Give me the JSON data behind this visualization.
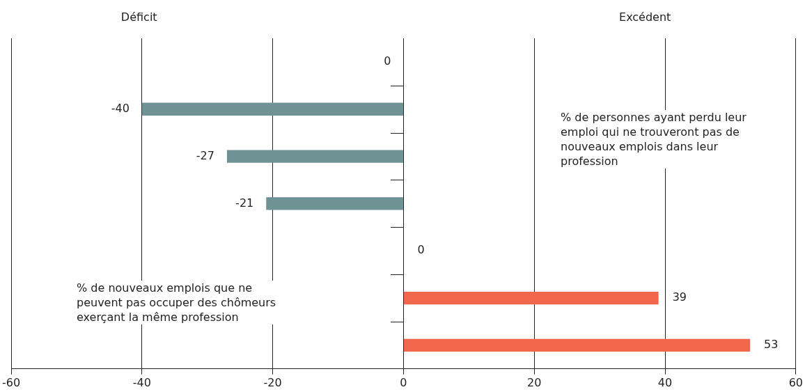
{
  "chart_data": {
    "type": "bar",
    "orientation": "horizontal",
    "categories": [
      null,
      null,
      null,
      null,
      null,
      null,
      null
    ],
    "values": [
      0,
      -40,
      -27,
      -21,
      0,
      39,
      53
    ],
    "colors": [
      "#6f9295",
      "#6f9295",
      "#6f9295",
      "#6f9295",
      "#f0674b",
      "#f0674b",
      "#f0674b"
    ],
    "data_labels": true,
    "xlim": [
      -60,
      60
    ],
    "xticks": [
      -60,
      -40,
      -20,
      0,
      20,
      40,
      60
    ],
    "grid": "x",
    "legend": false,
    "annotations": [
      "Déficit",
      "Excédent",
      "% de personnes ayant perdu leur emploi qui ne trouveront pas de nouveaux emplois dans leur profession",
      "% de nouveaux emplois que ne peuvent pas occuper des chômeurs exerçant la même profession"
    ]
  }
}
